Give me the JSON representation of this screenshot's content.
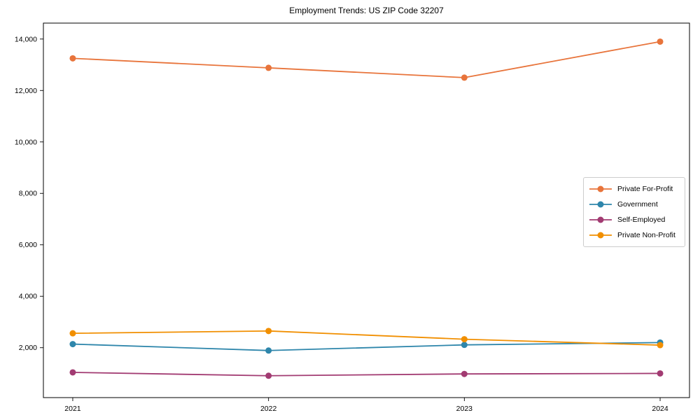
{
  "chart_data": {
    "type": "line",
    "title": "Employment Trends: US ZIP Code 32207",
    "xlabel": "",
    "ylabel": "",
    "x": [
      2021,
      2022,
      2023,
      2024
    ],
    "x_tick_labels": [
      "2021",
      "2022",
      "2023",
      "2024"
    ],
    "y_tick_values": [
      2000,
      4000,
      6000,
      8000,
      10000,
      12000,
      14000
    ],
    "y_tick_labels": [
      "2,000",
      "4,000",
      "6,000",
      "8,000",
      "10,000",
      "12,000",
      "14,000"
    ],
    "xlim": [
      2020.85,
      2024.15
    ],
    "ylim": [
      60,
      14620
    ],
    "grid": false,
    "legend_position": "center-right",
    "marker": "circle",
    "series": [
      {
        "name": "Private For-Profit",
        "color": "#E8743B",
        "values": [
          13250,
          12880,
          12500,
          13900
        ]
      },
      {
        "name": "Government",
        "color": "#2E86AB",
        "values": [
          2140,
          1890,
          2110,
          2200
        ]
      },
      {
        "name": "Self-Employed",
        "color": "#A23B72",
        "values": [
          1040,
          910,
          980,
          1000
        ]
      },
      {
        "name": "Private Non-Profit",
        "color": "#F18F01",
        "values": [
          2560,
          2650,
          2330,
          2100
        ]
      }
    ]
  }
}
